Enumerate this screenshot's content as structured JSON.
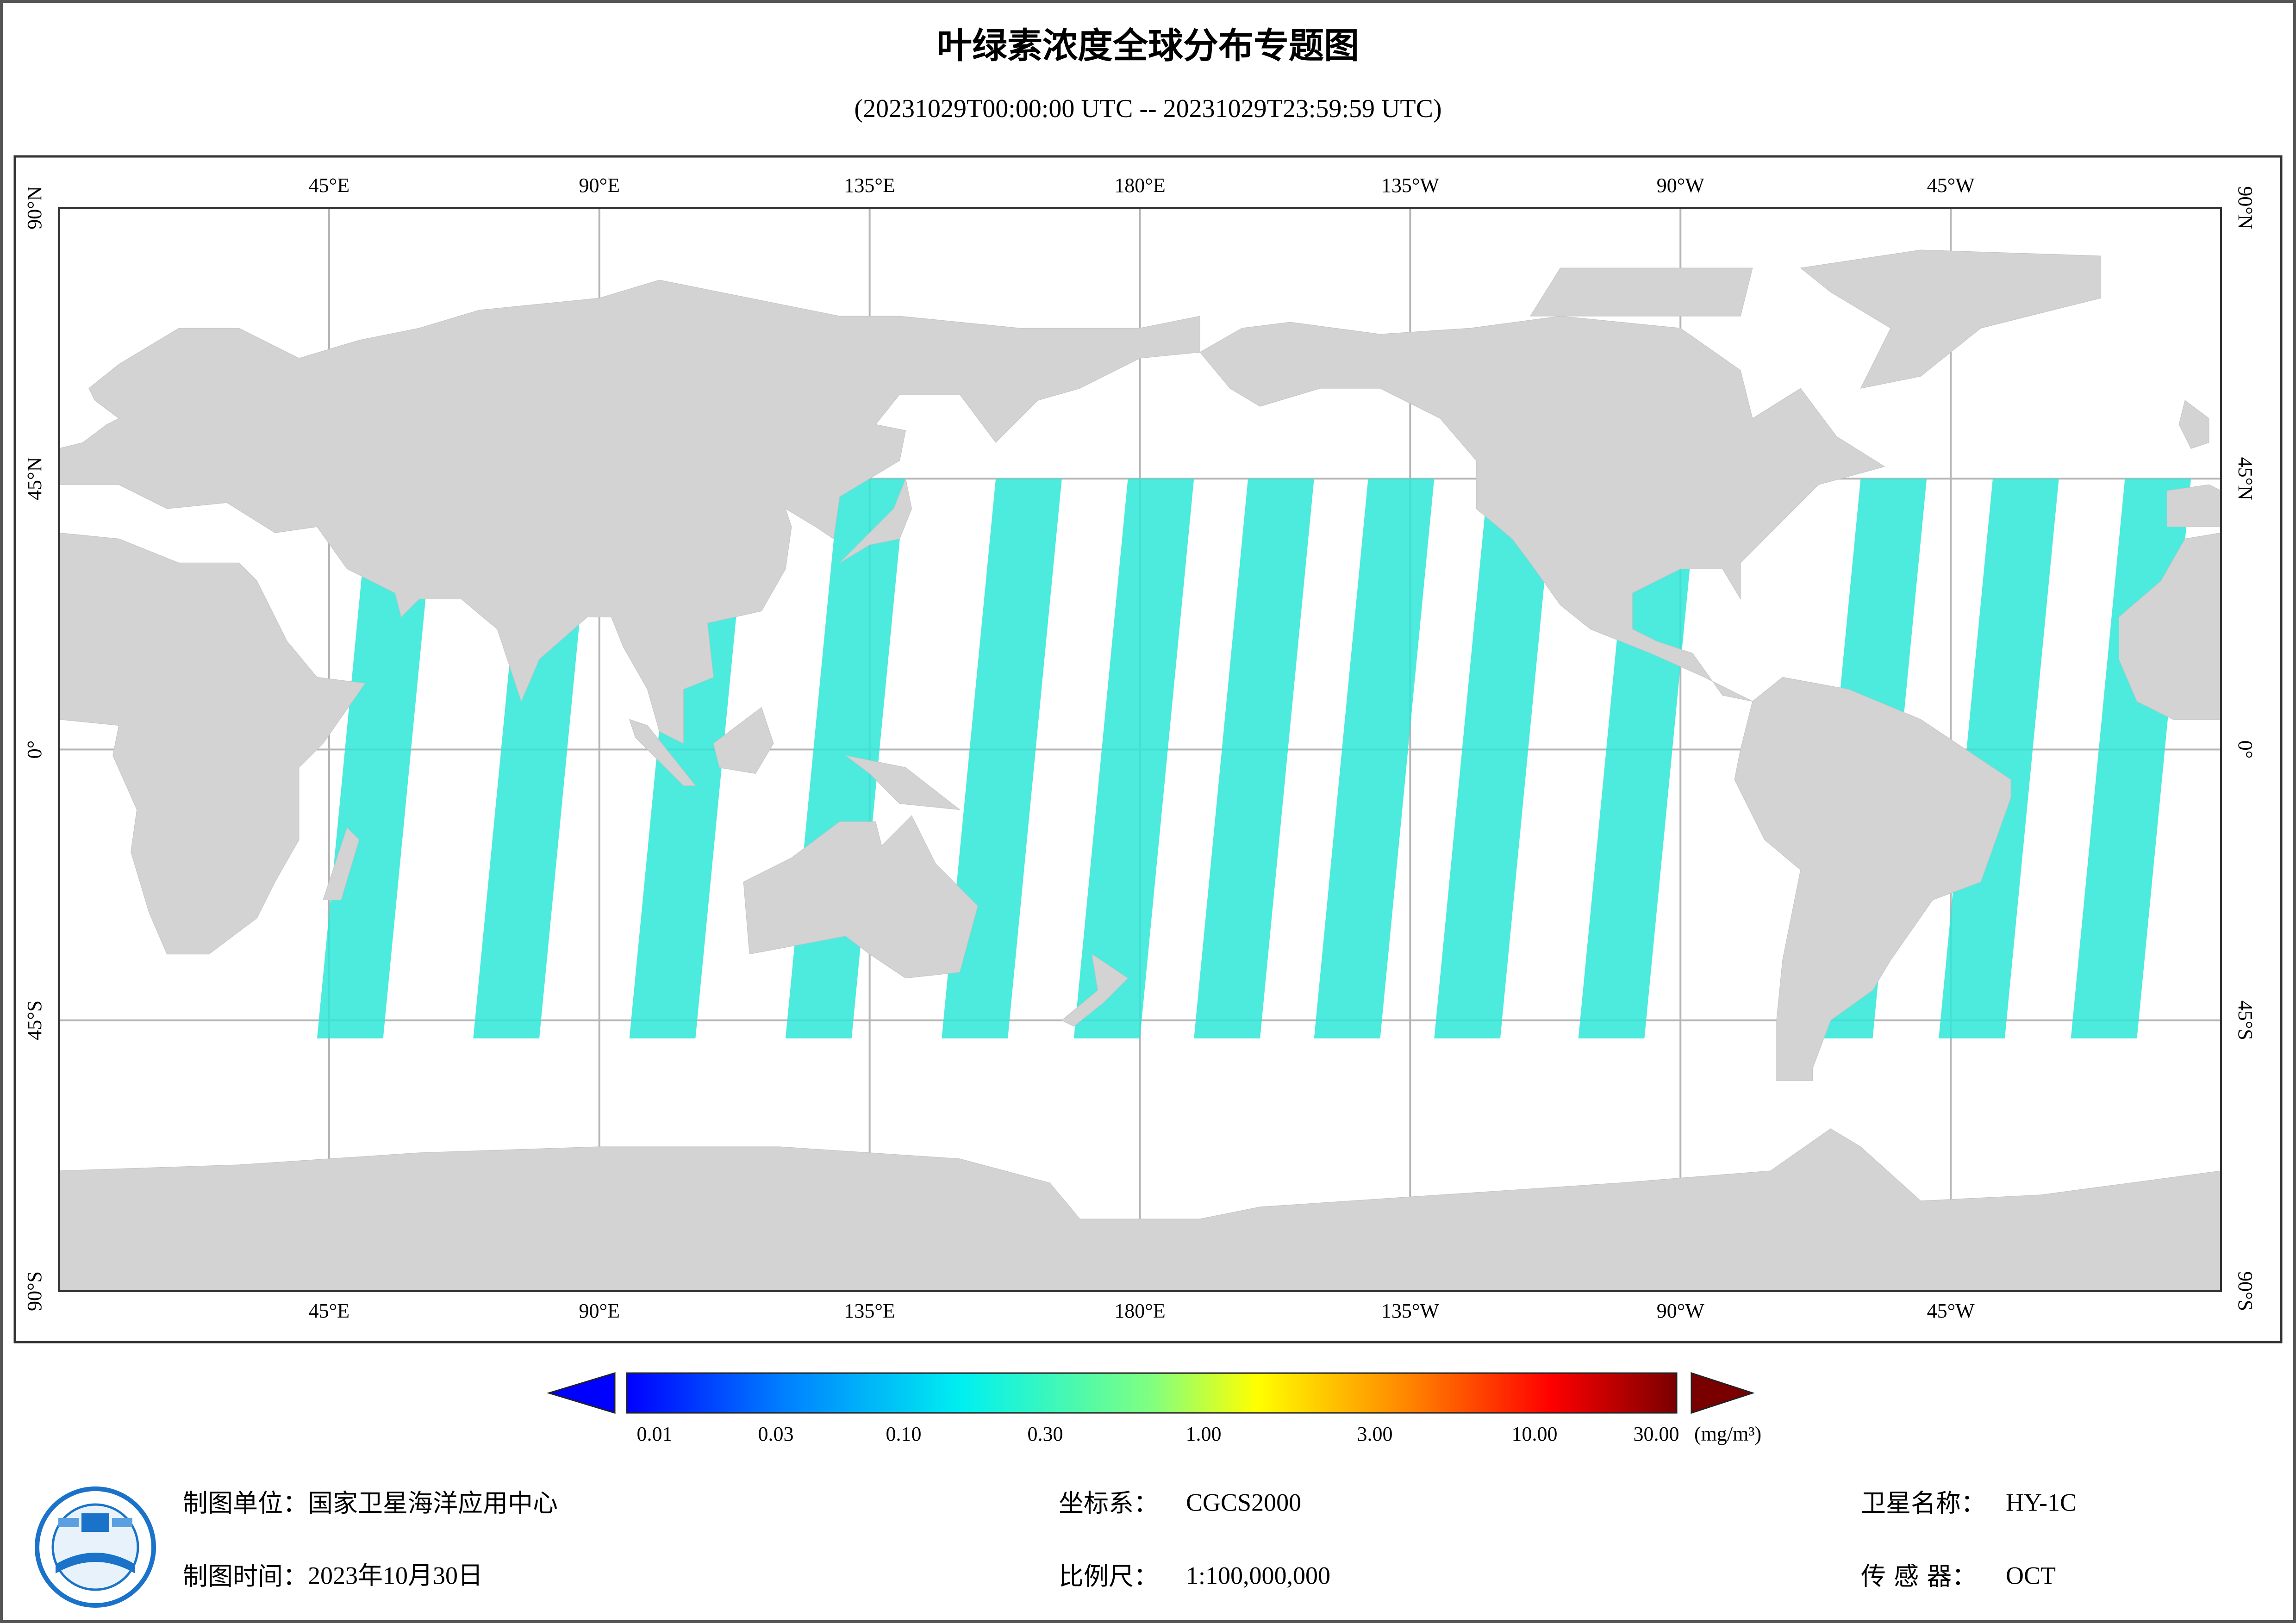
{
  "header": {
    "title": "叶绿素浓度全球分布专题图",
    "subtitle": "(20231029T00:00:00 UTC -- 20231029T23:59:59 UTC)"
  },
  "map": {
    "lon_labels": [
      "45°E",
      "90°E",
      "135°E",
      "180°E",
      "135°W",
      "90°W",
      "45°W"
    ],
    "lat_labels": [
      "90°N",
      "45°N",
      "0°",
      "45°S",
      "90°S"
    ]
  },
  "legend": {
    "ticks": [
      "0.01",
      "0.03",
      "0.10",
      "0.30",
      "1.00",
      "3.00",
      "10.00",
      "30.00"
    ],
    "unit": "(mg/m³)"
  },
  "footer": {
    "producer": {
      "label": "制图单位：",
      "value": "国家卫星海洋应用中心"
    },
    "date": {
      "label": "制图时间：",
      "value": "2023年10月30日"
    },
    "crs": {
      "label": "坐标系：",
      "value": "CGCS2000"
    },
    "scale": {
      "label": "比例尺：",
      "value": "1:100,000,000"
    },
    "satellite": {
      "label": "卫星名称：",
      "value": "HY-1C"
    },
    "sensor": {
      "label": "传 感 器：",
      "value": "OCT"
    }
  }
}
